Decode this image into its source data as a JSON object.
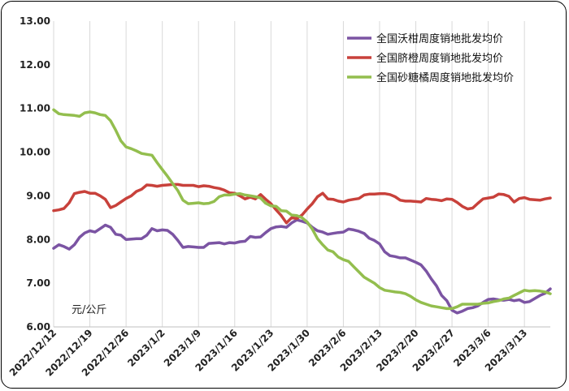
{
  "chart_data": {
    "type": "line",
    "title": "",
    "xlabel": "",
    "ylabel": "",
    "unit_label": "元/公斤",
    "ylim": [
      6.0,
      13.0
    ],
    "y_ticks": [
      "6.00",
      "7.00",
      "8.00",
      "9.00",
      "10.00",
      "11.00",
      "12.00",
      "13.00"
    ],
    "x_ticks": [
      "2022/12/12",
      "2022/12/19",
      "2022/12/26",
      "2023/1/2",
      "2023/1/9",
      "2023/1/16",
      "2023/1/23",
      "2023/1/30",
      "2023/2/6",
      "2023/2/13",
      "2023/2/20",
      "2023/2/27",
      "2023/3/6",
      "2023/3/13"
    ],
    "grid": "vertical",
    "legend_position": "top-right",
    "series": [
      {
        "name": "全国沃柑周度销地批发均价",
        "color": "#7b54a3",
        "values": [
          7.8,
          7.88,
          7.84,
          7.78,
          7.88,
          8.05,
          8.15,
          8.2,
          8.17,
          8.25,
          8.33,
          8.28,
          8.12,
          8.1,
          8.0,
          8.01,
          8.02,
          8.02,
          8.1,
          8.25,
          8.2,
          8.22,
          8.21,
          8.12,
          7.98,
          7.82,
          7.84,
          7.83,
          7.82,
          7.82,
          7.91,
          7.92,
          7.93,
          7.9,
          7.93,
          7.92,
          7.95,
          7.96,
          8.07,
          8.05,
          8.06,
          8.16,
          8.25,
          8.29,
          8.3,
          8.28,
          8.38,
          8.45,
          8.42,
          8.38,
          8.28,
          8.2,
          8.17,
          8.12,
          8.14,
          8.16,
          8.17,
          8.24,
          8.22,
          8.19,
          8.14,
          8.03,
          7.98,
          7.9,
          7.72,
          7.63,
          7.61,
          7.58,
          7.58,
          7.53,
          7.48,
          7.42,
          7.28,
          7.1,
          6.94,
          6.72,
          6.6,
          6.38,
          6.32,
          6.36,
          6.42,
          6.44,
          6.48,
          6.56,
          6.63,
          6.64,
          6.62,
          6.61,
          6.63,
          6.6,
          6.62,
          6.56,
          6.58,
          6.65,
          6.72,
          6.77,
          6.87
        ]
      },
      {
        "name": "全国脐橙周度销地批发均价",
        "color": "#c8413b",
        "values": [
          8.66,
          8.68,
          8.71,
          8.84,
          9.05,
          9.08,
          9.1,
          9.06,
          9.06,
          9.0,
          8.92,
          8.73,
          8.78,
          8.86,
          8.94,
          9.0,
          9.1,
          9.15,
          9.25,
          9.24,
          9.22,
          9.24,
          9.25,
          9.26,
          9.26,
          9.24,
          9.24,
          9.24,
          9.21,
          9.23,
          9.22,
          9.19,
          9.17,
          9.13,
          9.07,
          9.06,
          9.0,
          8.93,
          8.97,
          8.93,
          9.03,
          8.92,
          8.82,
          8.68,
          8.55,
          8.38,
          8.5,
          8.48,
          8.56,
          8.7,
          8.82,
          8.98,
          9.06,
          8.93,
          8.92,
          8.88,
          8.86,
          8.9,
          8.92,
          8.94,
          9.02,
          9.04,
          9.04,
          9.05,
          9.05,
          9.03,
          8.98,
          8.9,
          8.88,
          8.88,
          8.87,
          8.86,
          8.94,
          8.92,
          8.91,
          8.89,
          8.93,
          8.92,
          8.85,
          8.76,
          8.7,
          8.72,
          8.83,
          8.93,
          8.95,
          8.97,
          9.04,
          9.03,
          8.99,
          8.86,
          8.94,
          8.96,
          8.92,
          8.91,
          8.9,
          8.93,
          8.95
        ]
      },
      {
        "name": "全国砂糖橘周度销地批发均价",
        "color": "#93be4e",
        "values": [
          10.97,
          10.88,
          10.86,
          10.85,
          10.84,
          10.82,
          10.9,
          10.92,
          10.9,
          10.86,
          10.84,
          10.72,
          10.5,
          10.26,
          10.12,
          10.08,
          10.03,
          9.97,
          9.95,
          9.93,
          9.76,
          9.6,
          9.45,
          9.28,
          9.12,
          8.9,
          8.82,
          8.83,
          8.84,
          8.82,
          8.83,
          8.87,
          8.98,
          9.02,
          9.02,
          9.04,
          9.05,
          9.02,
          9.0,
          8.98,
          8.95,
          8.83,
          8.77,
          8.76,
          8.66,
          8.65,
          8.56,
          8.55,
          8.5,
          8.4,
          8.24,
          8.02,
          7.88,
          7.76,
          7.72,
          7.6,
          7.54,
          7.5,
          7.38,
          7.26,
          7.14,
          7.07,
          7.0,
          6.9,
          6.84,
          6.82,
          6.8,
          6.79,
          6.76,
          6.7,
          6.62,
          6.56,
          6.52,
          6.48,
          6.46,
          6.44,
          6.42,
          6.42,
          6.46,
          6.52,
          6.52,
          6.52,
          6.52,
          6.54,
          6.55,
          6.58,
          6.6,
          6.64,
          6.66,
          6.72,
          6.78,
          6.84,
          6.82,
          6.83,
          6.82,
          6.8,
          6.76
        ]
      }
    ]
  }
}
